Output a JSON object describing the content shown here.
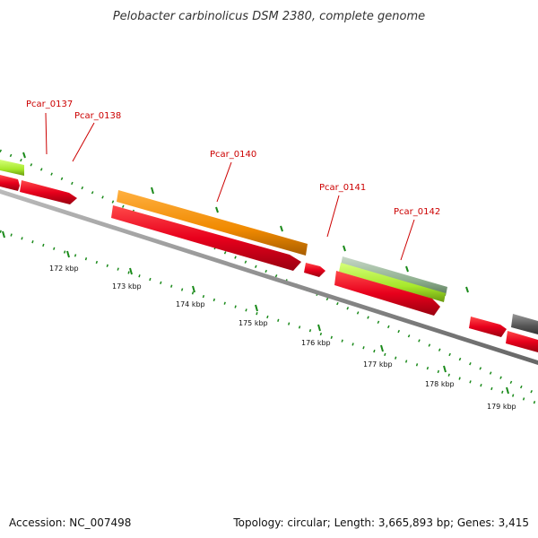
{
  "title": "Pelobacter carbinolicus DSM 2380, complete genome",
  "footer": {
    "accession": "Accession: NC_007498",
    "topology": "Topology: circular; Length: 3,665,893 bp; Genes: 3,415"
  },
  "gene_labels": [
    {
      "id": "g137",
      "text": "Pcar_0137"
    },
    {
      "id": "g138",
      "text": "Pcar_0138"
    },
    {
      "id": "g140",
      "text": "Pcar_0140"
    },
    {
      "id": "g141",
      "text": "Pcar_0141"
    },
    {
      "id": "g142",
      "text": "Pcar_0142"
    }
  ],
  "scale_labels": [
    "172 kbp",
    "173 kbp",
    "174 kbp",
    "175 kbp",
    "176 kbp",
    "177 kbp",
    "178 kbp",
    "179 kbp"
  ],
  "colors": {
    "red_gene": "#e8001c",
    "orange_gene": "#f08a00",
    "lime_gene": "#a6e82a",
    "gray_gene": "#8fb08f",
    "dark_gene": "#555555",
    "backbone": "#888888",
    "tick": "#1a8a1a",
    "label": "#cc0000"
  }
}
